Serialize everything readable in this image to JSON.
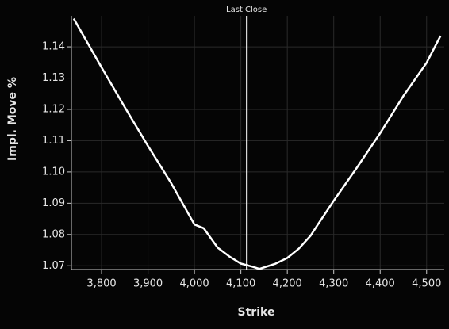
{
  "chart_data": {
    "type": "line",
    "x_label": "Strike",
    "y_label": "Impl. Move %",
    "annotation": {
      "label": "Last Close",
      "x": 4112
    },
    "x": [
      3740,
      3800,
      3850,
      3900,
      3950,
      4000,
      4020,
      4050,
      4075,
      4100,
      4125,
      4140,
      4175,
      4200,
      4225,
      4250,
      4265,
      4300,
      4350,
      4400,
      4450,
      4500,
      4530
    ],
    "series": [
      {
        "name": "Impl. Move %",
        "color": "#ffffff",
        "values": [
          1.149,
          1.1334,
          1.1207,
          1.1083,
          1.0964,
          1.0832,
          1.082,
          1.0758,
          1.073,
          1.0707,
          1.0697,
          1.069,
          1.0707,
          1.0725,
          1.0755,
          1.0796,
          1.083,
          1.0908,
          1.1014,
          1.1124,
          1.1243,
          1.1349,
          1.1435
        ]
      }
    ],
    "xlim": [
      3735,
      4538
    ],
    "ylim": [
      1.0688,
      1.1499
    ],
    "xticks": [
      {
        "value": 3800,
        "label": "3,800"
      },
      {
        "value": 3900,
        "label": "3,900"
      },
      {
        "value": 4000,
        "label": "4,000"
      },
      {
        "value": 4100,
        "label": "4,100"
      },
      {
        "value": 4200,
        "label": "4,200"
      },
      {
        "value": 4300,
        "label": "4,300"
      },
      {
        "value": 4400,
        "label": "4,400"
      },
      {
        "value": 4500,
        "label": "4,500"
      }
    ],
    "yticks": [
      1.07,
      1.08,
      1.09,
      {
        "value": 1.1,
        "label": "1.10"
      },
      1.11,
      1.12,
      1.13,
      1.14
    ],
    "grid": true
  }
}
